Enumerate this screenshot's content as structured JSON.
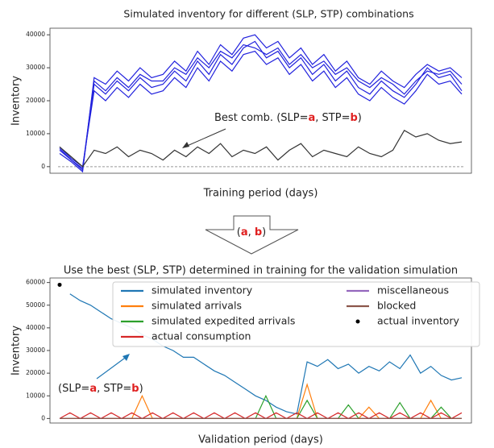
{
  "chart_data": [
    {
      "type": "line",
      "title": "Simulated inventory for different (SLP, STP) combinations",
      "xlabel": "Training period (days)",
      "ylabel": "Inventory",
      "ylim": [
        -2000,
        42000
      ],
      "yticks": [
        0,
        10000,
        20000,
        30000,
        40000
      ],
      "reference_line": 0,
      "series": [
        {
          "color": "#2222dd",
          "values": [
            5000,
            2000,
            -1000,
            25000,
            22000,
            26000,
            23000,
            27000,
            24000,
            25000,
            29000,
            26000,
            32000,
            28000,
            34000,
            31000,
            36000,
            38000,
            33000,
            35000,
            30000,
            33000,
            28000,
            31000,
            26000,
            29000,
            24000,
            22000,
            26000,
            23000,
            21000,
            25000,
            30000,
            27000,
            28000,
            23000
          ]
        },
        {
          "color": "#2222dd",
          "values": [
            4000,
            1500,
            -1500,
            27000,
            25000,
            29000,
            26000,
            30000,
            27000,
            28000,
            32000,
            29000,
            35000,
            31000,
            37000,
            34000,
            39000,
            40000,
            36000,
            38000,
            33000,
            36000,
            31000,
            34000,
            29000,
            32000,
            27000,
            25000,
            29000,
            26000,
            24000,
            28000,
            31000,
            29000,
            30000,
            27000
          ]
        },
        {
          "color": "#2222dd",
          "values": [
            6000,
            2500,
            0,
            23000,
            20000,
            24000,
            21000,
            25000,
            22000,
            23000,
            27000,
            24000,
            30000,
            26000,
            32000,
            29000,
            34000,
            35000,
            31000,
            33000,
            28000,
            31000,
            26000,
            29000,
            24000,
            27000,
            22000,
            20000,
            24000,
            21000,
            19000,
            23000,
            28000,
            25000,
            26000,
            22000
          ]
        },
        {
          "color": "#2222dd",
          "values": [
            5500,
            2000,
            -500,
            26000,
            23000,
            27000,
            24000,
            28000,
            26000,
            26000,
            30000,
            28000,
            33000,
            30000,
            35000,
            33000,
            37000,
            36000,
            34000,
            36000,
            31000,
            34000,
            30000,
            32000,
            28000,
            30000,
            26000,
            24000,
            27000,
            25000,
            22000,
            26000,
            29000,
            28000,
            29000,
            25000
          ]
        },
        {
          "color": "#333333",
          "values": [
            6000,
            3000,
            0,
            5000,
            4000,
            6000,
            3000,
            5000,
            4000,
            2000,
            5000,
            3000,
            6000,
            4000,
            7000,
            3000,
            5000,
            4000,
            6000,
            2000,
            5000,
            7000,
            3000,
            5000,
            4000,
            3000,
            6000,
            4000,
            3000,
            5000,
            11000,
            9000,
            10000,
            8000,
            7000,
            7500
          ]
        }
      ],
      "annotation": [
        {
          "text": "Best comb. (SLP=",
          "color": "#222"
        },
        {
          "text": "a",
          "color": "#e02020"
        },
        {
          "text": ", STP=",
          "color": "#222"
        },
        {
          "text": "b",
          "color": "#e02020"
        },
        {
          "text": ")",
          "color": "#222"
        }
      ]
    },
    {
      "type": "line",
      "title": "Use the best (SLP, STP) determined in training for the validation simulation",
      "xlabel": "Validation period (days)",
      "ylabel": "Inventory",
      "ylim": [
        -2000,
        62000
      ],
      "yticks": [
        0,
        10000,
        20000,
        30000,
        40000,
        50000,
        60000
      ],
      "series": [
        {
          "name": "simulated inventory",
          "color": "#1f77b4",
          "values": [
            null,
            55000,
            52000,
            50000,
            47000,
            44000,
            42000,
            40000,
            37000,
            35000,
            32000,
            30000,
            27000,
            27000,
            24000,
            21000,
            19000,
            16000,
            13000,
            10000,
            8000,
            5000,
            3000,
            2000,
            25000,
            23000,
            26000,
            22000,
            24000,
            20000,
            23000,
            21000,
            25000,
            22000,
            28000,
            20000,
            23000,
            19000,
            17000,
            18000
          ]
        },
        {
          "name": "simulated arrivals",
          "color": "#ff7f0e",
          "values": [
            0,
            0,
            0,
            0,
            0,
            0,
            0,
            0,
            10000,
            0,
            0,
            0,
            0,
            0,
            0,
            0,
            0,
            0,
            0,
            0,
            0,
            0,
            0,
            0,
            15000,
            0,
            0,
            0,
            0,
            0,
            5000,
            0,
            0,
            0,
            0,
            0,
            8000,
            0,
            0,
            0
          ]
        },
        {
          "name": "simulated expedited arrivals",
          "color": "#2ca02c",
          "values": [
            0,
            0,
            0,
            0,
            0,
            0,
            0,
            0,
            0,
            0,
            0,
            0,
            0,
            0,
            0,
            0,
            0,
            0,
            0,
            0,
            10000,
            0,
            0,
            0,
            8000,
            0,
            0,
            0,
            6000,
            0,
            0,
            0,
            0,
            7000,
            0,
            0,
            0,
            5000,
            0,
            0
          ]
        },
        {
          "name": "actual consumption",
          "color": "#d62728",
          "values": [
            0,
            2500,
            0,
            2500,
            0,
            2500,
            0,
            2500,
            0,
            2500,
            0,
            2500,
            0,
            2500,
            0,
            2500,
            0,
            2500,
            0,
            2500,
            0,
            2500,
            0,
            2500,
            0,
            2500,
            0,
            2500,
            0,
            2500,
            0,
            2500,
            0,
            2500,
            0,
            2500,
            0,
            2500,
            0,
            2500
          ]
        },
        {
          "name": "miscellaneous",
          "color": "#9467bd",
          "values": [
            0,
            0,
            0,
            0,
            0,
            0,
            0,
            0,
            0,
            0,
            0,
            0,
            0,
            0,
            0,
            0,
            0,
            0,
            0,
            0,
            0,
            0,
            0,
            0,
            0,
            0,
            0,
            0,
            0,
            0,
            0,
            0,
            0,
            0,
            0,
            0,
            0,
            0,
            0,
            0
          ]
        },
        {
          "name": "blocked",
          "color": "#8c564b",
          "values": [
            0,
            0,
            0,
            0,
            0,
            0,
            0,
            0,
            0,
            0,
            0,
            0,
            0,
            0,
            0,
            0,
            0,
            0,
            0,
            0,
            0,
            0,
            0,
            0,
            0,
            0,
            0,
            0,
            0,
            0,
            0,
            0,
            0,
            0,
            0,
            0,
            0,
            0,
            0,
            0
          ]
        },
        {
          "name": "actual inventory",
          "color": "#000000",
          "marker": "dot",
          "values": [
            59000,
            null,
            null,
            null,
            null,
            null,
            null,
            null,
            null,
            null,
            null,
            null,
            null,
            null,
            null,
            null,
            null,
            null,
            null,
            null,
            null,
            null,
            null,
            null,
            null,
            null,
            null,
            null,
            null,
            null,
            null,
            null,
            null,
            null,
            null,
            null,
            null,
            null,
            null,
            null
          ]
        }
      ],
      "annotation": [
        {
          "text": "(SLP=",
          "color": "#222"
        },
        {
          "text": "a",
          "color": "#e02020"
        },
        {
          "text": ", STP=",
          "color": "#222"
        },
        {
          "text": "b",
          "color": "#e02020"
        },
        {
          "text": ")",
          "color": "#222"
        }
      ]
    }
  ],
  "arrow_label": [
    {
      "text": "(",
      "color": "#222"
    },
    {
      "text": "a",
      "color": "#e02020"
    },
    {
      "text": ", ",
      "color": "#222"
    },
    {
      "text": "b",
      "color": "#e02020"
    },
    {
      "text": ")",
      "color": "#222"
    }
  ]
}
